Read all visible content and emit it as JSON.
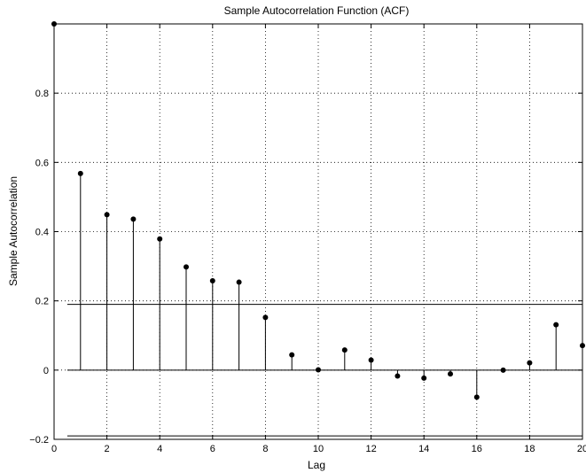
{
  "chart_data": {
    "type": "stem",
    "title": "Sample Autocorrelation Function (ACF)",
    "xlabel": "Lag",
    "ylabel": "Sample Autocorrelation",
    "xlim": [
      0,
      20
    ],
    "ylim": [
      -0.2,
      1.0
    ],
    "xticks": [
      0,
      2,
      4,
      6,
      8,
      10,
      12,
      14,
      16,
      18,
      20
    ],
    "yticks": [
      -0.2,
      0,
      0.2,
      0.4,
      0.6,
      0.8
    ],
    "ytick_labels": [
      "−0.2",
      "0",
      "0.2",
      "0.4",
      "0.6",
      "0.8"
    ],
    "xtick_labels": [
      "0",
      "2",
      "4",
      "6",
      "8",
      "10",
      "12",
      "14",
      "16",
      "18",
      "20"
    ],
    "grid": true,
    "lags": [
      0,
      1,
      2,
      3,
      4,
      5,
      6,
      7,
      8,
      9,
      10,
      11,
      12,
      13,
      14,
      15,
      16,
      17,
      18,
      19,
      20
    ],
    "values": [
      1.0,
      0.568,
      0.449,
      0.436,
      0.379,
      0.298,
      0.258,
      0.254,
      0.152,
      0.044,
      0.001,
      0.058,
      0.029,
      -0.017,
      -0.023,
      -0.011,
      -0.078,
      0.0,
      0.021,
      0.131,
      0.071
    ],
    "confidence_bounds": [
      0.19,
      -0.19
    ],
    "colors": {
      "stem": "#000000",
      "grid": "#000000",
      "bounds": "#000000"
    }
  }
}
